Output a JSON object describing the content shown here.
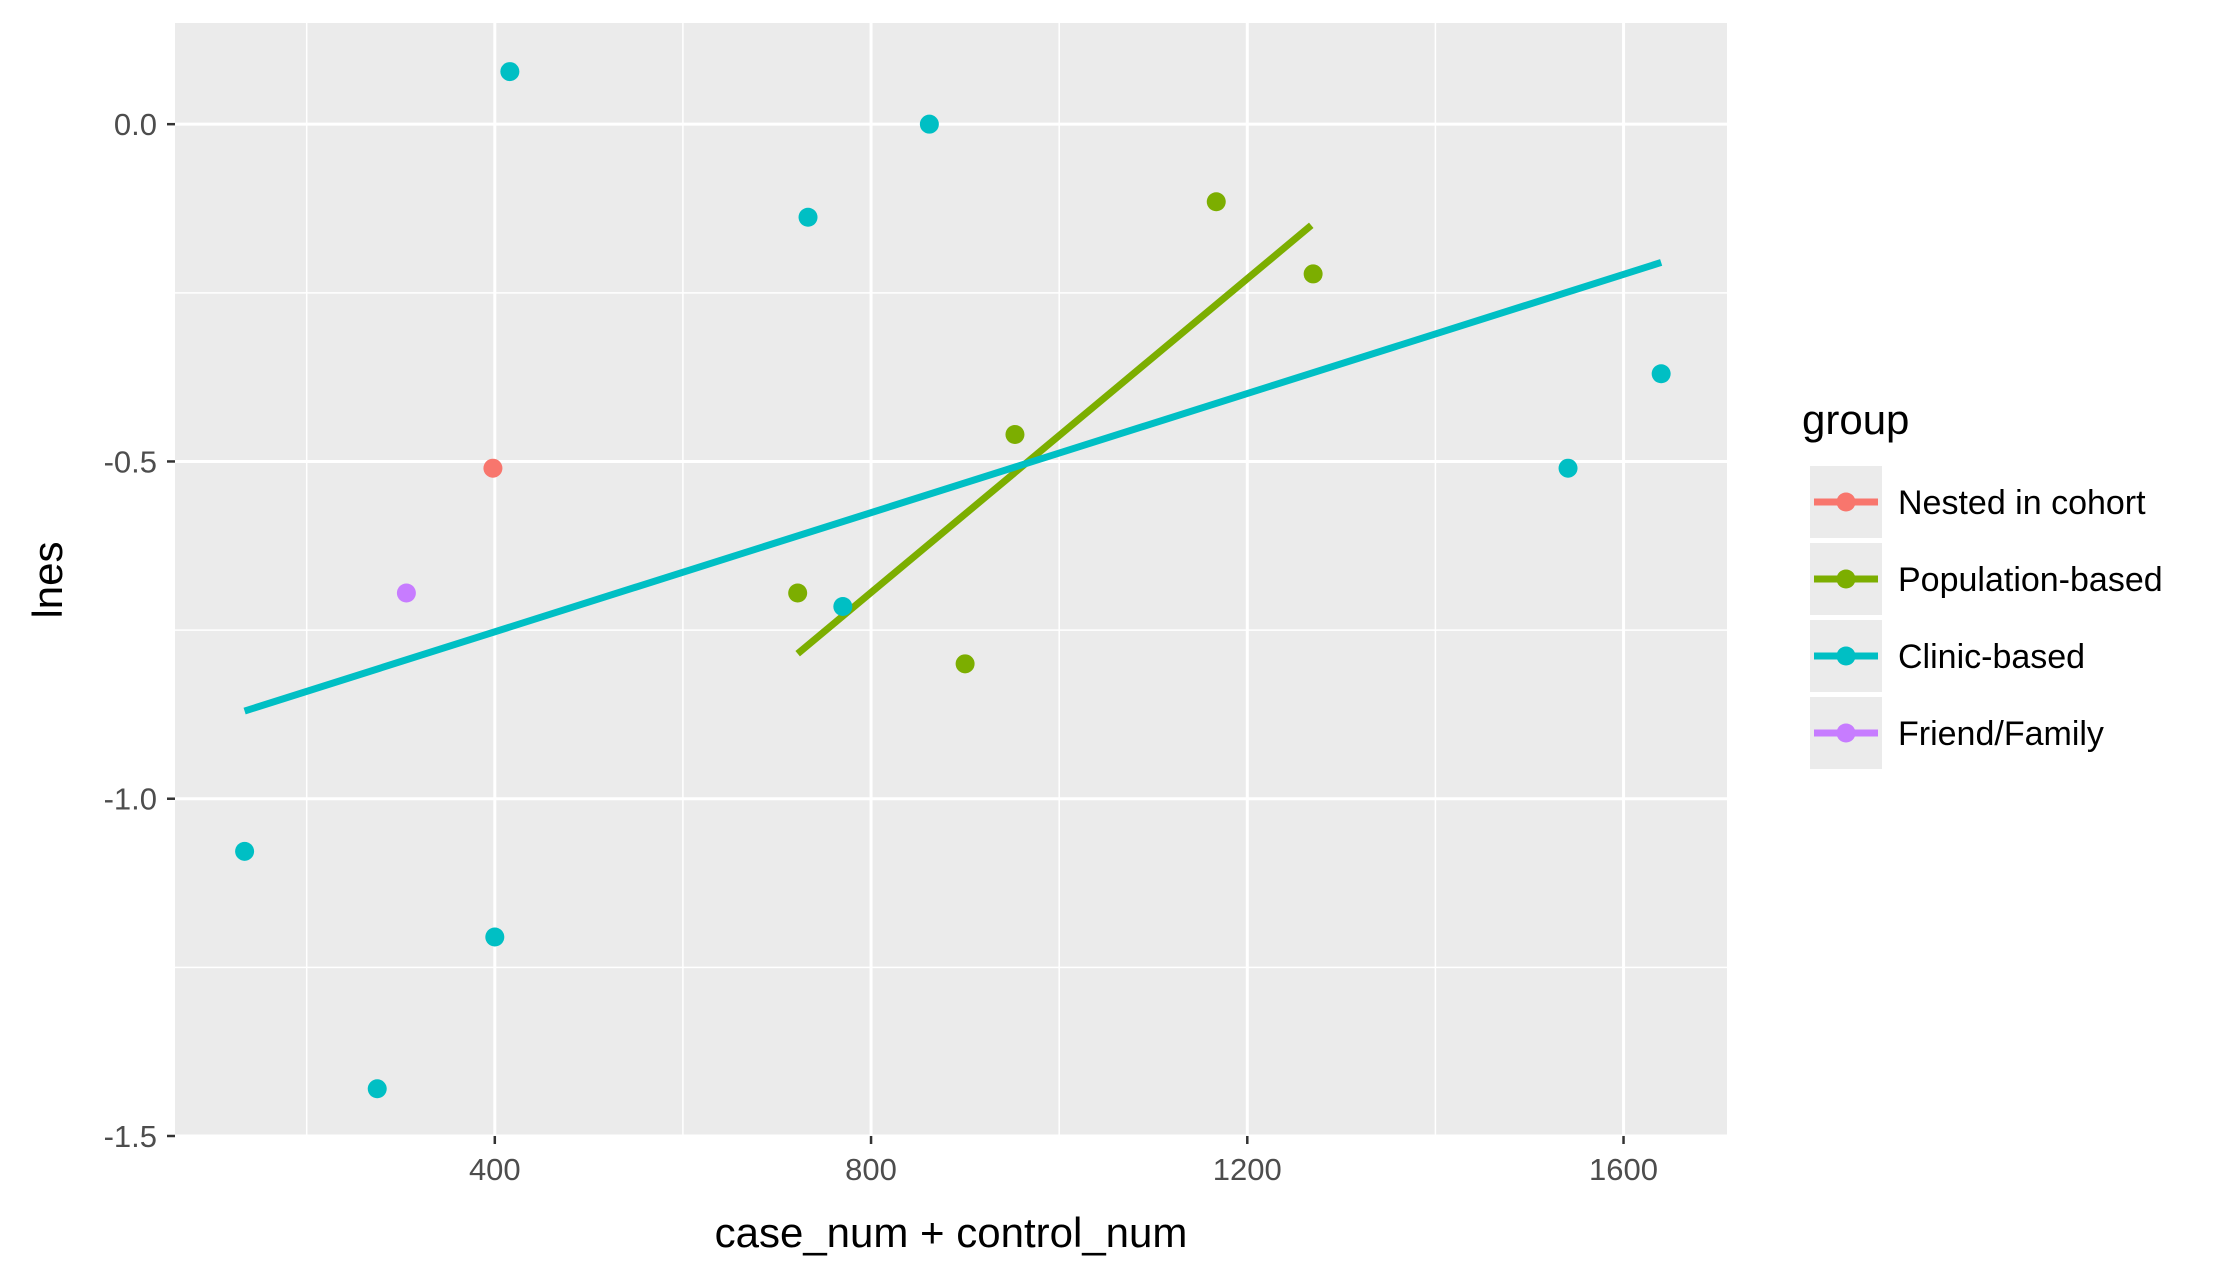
{
  "chart_data": {
    "type": "scatter",
    "xlabel": "case_num + control_num",
    "ylabel": "lnes",
    "xlim": [
      60,
      1710
    ],
    "ylim": [
      -1.5,
      0.15
    ],
    "x_ticks": [
      400,
      800,
      1200,
      1600
    ],
    "x_tick_labels": [
      "400",
      "800",
      "1200",
      "1600"
    ],
    "x_minor_ticks": [
      200,
      600,
      1000,
      1400
    ],
    "y_ticks": [
      -1.5,
      -1.0,
      -0.5,
      0.0
    ],
    "y_tick_labels": [
      "-1.5",
      "-1.0",
      "-0.5",
      "0.0"
    ],
    "y_minor_ticks": [
      -1.25,
      -0.75,
      -0.25
    ],
    "grid": true,
    "legend": {
      "title": "group",
      "position": "right",
      "entries": [
        "Nested in cohort",
        "Population-based",
        "Clinic-based",
        "Friend/Family"
      ]
    },
    "series": [
      {
        "name": "Nested in cohort",
        "color": "#F8766D",
        "points": [
          [
            398,
            -0.51
          ]
        ]
      },
      {
        "name": "Population-based",
        "color": "#7CAE00",
        "points": [
          [
            722,
            -0.695
          ],
          [
            900,
            -0.8
          ],
          [
            953,
            -0.46
          ],
          [
            1167,
            -0.115
          ],
          [
            1270,
            -0.222
          ]
        ],
        "fit_line": [
          [
            722,
            -0.785
          ],
          [
            1268,
            -0.15
          ]
        ]
      },
      {
        "name": "Clinic-based",
        "color": "#00BFC4",
        "points": [
          [
            134,
            -1.078
          ],
          [
            275,
            -1.43
          ],
          [
            400,
            -1.205
          ],
          [
            416,
            0.078
          ],
          [
            733,
            -0.138
          ],
          [
            770,
            -0.715
          ],
          [
            862,
            0.0
          ],
          [
            1541,
            -0.51
          ],
          [
            1640,
            -0.37
          ]
        ],
        "fit_line": [
          [
            134,
            -0.87
          ],
          [
            1640,
            -0.205
          ]
        ]
      },
      {
        "name": "Friend/Family",
        "color": "#C77CFF",
        "points": [
          [
            306,
            -0.695
          ]
        ]
      }
    ]
  }
}
